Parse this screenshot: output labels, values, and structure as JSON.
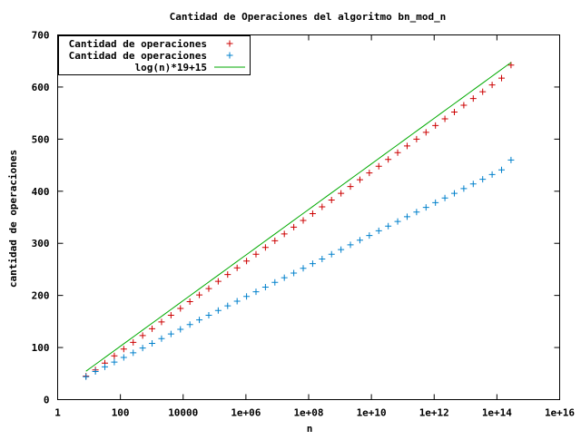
{
  "chart_data": {
    "type": "scatter",
    "title": "Cantidad de Operaciones del algoritmo bn_mod_n",
    "xlabel": "n",
    "ylabel": "cantidad de operaciones",
    "x_scale": "log",
    "xlim": [
      1,
      1e+16
    ],
    "ylim": [
      0,
      700
    ],
    "grid": false,
    "legend_position": "top-left",
    "x_ticks": [
      {
        "value": 1,
        "label": "1"
      },
      {
        "value": 100,
        "label": "100"
      },
      {
        "value": 10000,
        "label": "10000"
      },
      {
        "value": 1000000.0,
        "label": "1e+06"
      },
      {
        "value": 100000000.0,
        "label": "1e+08"
      },
      {
        "value": 10000000000.0,
        "label": "1e+10"
      },
      {
        "value": 1000000000000.0,
        "label": "1e+12"
      },
      {
        "value": 100000000000000.0,
        "label": "1e+14"
      },
      {
        "value": 1e+16,
        "label": "1e+16"
      }
    ],
    "y_ticks": [
      {
        "value": 0,
        "label": "0"
      },
      {
        "value": 100,
        "label": "100"
      },
      {
        "value": 200,
        "label": "200"
      },
      {
        "value": 300,
        "label": "300"
      },
      {
        "value": 400,
        "label": "400"
      },
      {
        "value": 500,
        "label": "500"
      },
      {
        "value": 600,
        "label": "600"
      },
      {
        "value": 700,
        "label": "700"
      }
    ],
    "x": [
      8,
      16,
      32,
      64,
      128,
      256,
      512,
      1024,
      2048,
      4096,
      8192,
      16384,
      32768,
      65536,
      131072,
      262144,
      524288,
      1048576,
      2097152,
      4194304,
      8388608,
      16777216,
      33554432,
      67108864,
      134217728,
      268435456,
      536870912,
      1073741824,
      2147483648,
      4294967296,
      8589934592,
      17179869184,
      34359738368,
      68719476736,
      137438953472,
      274877906944,
      549755813888,
      1099511627776,
      2199023255552,
      4398046511104,
      8796093022208,
      17592186044416,
      35184372088832,
      70368744177664,
      140737488355328,
      281474976710656
    ],
    "series": [
      {
        "name": "Cantidad de operaciones",
        "kind": "points",
        "marker": "+",
        "color": "#cc0000",
        "y": [
          45,
          57,
          70,
          84,
          97,
          110,
          123,
          136,
          149,
          162,
          175,
          188,
          201,
          213,
          227,
          240,
          253,
          266,
          279,
          292,
          305,
          318,
          331,
          344,
          357,
          370,
          383,
          396,
          409,
          422,
          435,
          448,
          461,
          474,
          487,
          500,
          513,
          526,
          539,
          552,
          565,
          578,
          591,
          604,
          617,
          642
        ]
      },
      {
        "name": "Cantidad de operaciones",
        "kind": "points",
        "marker": "+",
        "color": "#0080cc",
        "y": [
          44,
          54,
          63,
          72,
          81,
          90,
          99,
          108,
          117,
          126,
          135,
          144,
          153,
          162,
          171,
          180,
          189,
          198,
          207,
          216,
          225,
          234,
          243,
          252,
          261,
          270,
          279,
          288,
          297,
          306,
          315,
          324,
          333,
          342,
          351,
          360,
          369,
          378,
          387,
          396,
          405,
          414,
          423,
          432,
          441,
          460
        ]
      },
      {
        "name": "log(n)*19+15",
        "kind": "line",
        "color": "#00aa00",
        "x_range": [
          8,
          281474976710656
        ],
        "formula": "log(n)*19+15"
      }
    ]
  }
}
